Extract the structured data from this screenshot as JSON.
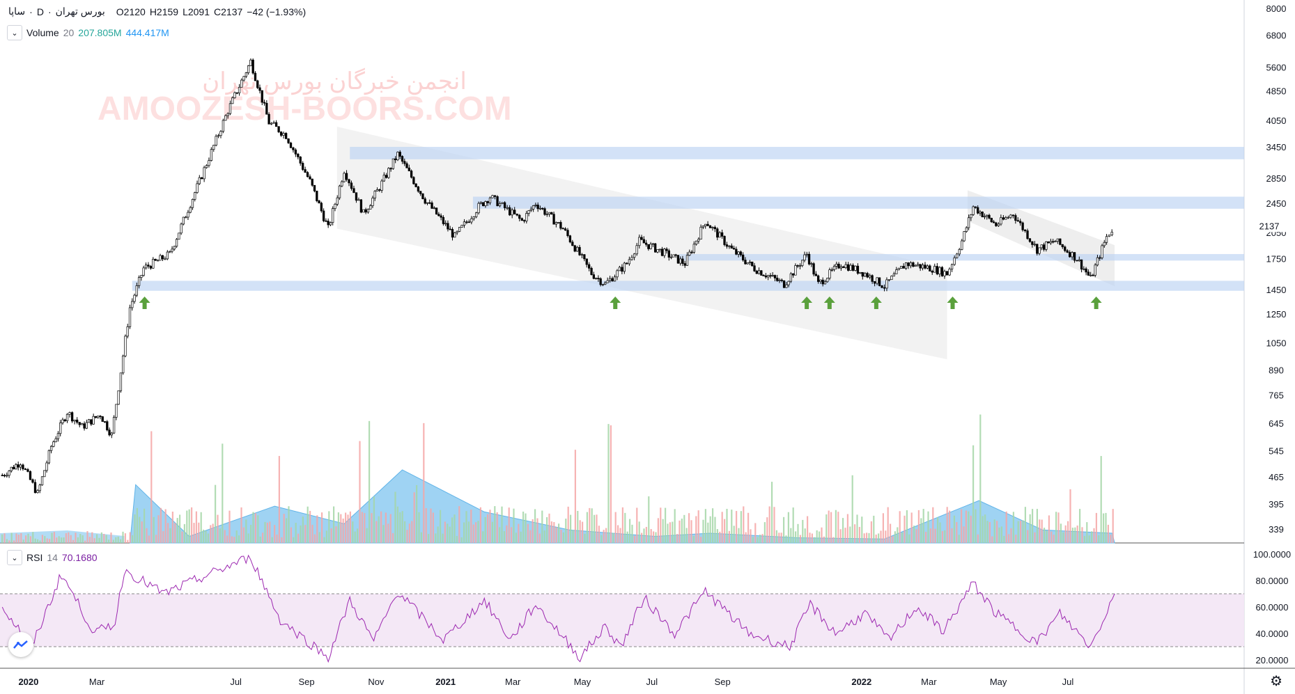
{
  "header": {
    "symbol": "ساپا",
    "interval": "D",
    "exchange": "بورس تهران",
    "open": "O2120",
    "high": "H2159",
    "low": "L2091",
    "close": "C2137",
    "change": "−42 (−1.93%)"
  },
  "volume_legend": {
    "name": "Volume",
    "length": "20",
    "value1": "207.805M",
    "value2": "444.417M"
  },
  "rsi_legend": {
    "name": "RSI",
    "length": "14",
    "value": "70.1680"
  },
  "watermark": {
    "line1": "انجمن خبرگان بورس تهران",
    "line2": "AMOOZESH-BOORS.COM"
  },
  "price_badge": "2137",
  "colors": {
    "up": "#26a69a",
    "down": "#ef5350",
    "zone": "#bcd3f2",
    "channel": "#d9d9d9",
    "rsi": "#9c27b0",
    "rsi_band": "#f3e5f5",
    "arrow": "#5aa03c"
  },
  "icons": {
    "logo": "tradingview-logo-icon",
    "settings": "gear-icon",
    "collapse": "chevron-down-icon"
  },
  "chart_data": [
    {
      "type": "line",
      "title": "",
      "y_scale": "log",
      "yaxis_ticks": [
        "8000",
        "6800",
        "5600",
        "4850",
        "4050",
        "3450",
        "2850",
        "2450",
        "2050",
        "1750",
        "1450",
        "1250",
        "1050",
        "890",
        "765",
        "645",
        "545",
        "465",
        "395",
        "339"
      ],
      "xaxis_ticks": [
        "2020",
        "Mar",
        "Jul",
        "Sep",
        "Nov",
        "2021",
        "Mar",
        "May",
        "Jul",
        "Sep",
        "2022",
        "Mar",
        "May",
        "Jul"
      ],
      "series": [
        {
          "values": [
            {
              "x": "2019-12-20",
              "y": 470
            },
            {
              "x": "2020-01-05",
              "y": 510
            },
            {
              "x": "2020-01-20",
              "y": 420
            },
            {
              "x": "2020-02-01",
              "y": 560
            },
            {
              "x": "2020-02-15",
              "y": 690
            },
            {
              "x": "2020-02-28",
              "y": 630
            },
            {
              "x": "2020-03-15",
              "y": 680
            },
            {
              "x": "2020-03-25",
              "y": 600
            },
            {
              "x": "2020-04-10",
              "y": 1300
            },
            {
              "x": "2020-04-22",
              "y": 1650
            },
            {
              "x": "2020-05-15",
              "y": 1800
            },
            {
              "x": "2020-06-10",
              "y": 2800
            },
            {
              "x": "2020-07-05",
              "y": 4300
            },
            {
              "x": "2020-07-25",
              "y": 5800
            },
            {
              "x": "2020-08-10",
              "y": 4000
            },
            {
              "x": "2020-08-25",
              "y": 3700
            },
            {
              "x": "2020-09-15",
              "y": 2800
            },
            {
              "x": "2020-10-01",
              "y": 2100
            },
            {
              "x": "2020-10-15",
              "y": 3000
            },
            {
              "x": "2020-11-01",
              "y": 2300
            },
            {
              "x": "2020-11-15",
              "y": 2700
            },
            {
              "x": "2020-12-01",
              "y": 3300
            },
            {
              "x": "2020-12-25",
              "y": 2500
            },
            {
              "x": "2021-01-20",
              "y": 2000
            },
            {
              "x": "2021-02-10",
              "y": 2400
            },
            {
              "x": "2021-02-20",
              "y": 2550
            },
            {
              "x": "2021-03-20",
              "y": 2200
            },
            {
              "x": "2021-04-01",
              "y": 2450
            },
            {
              "x": "2021-04-25",
              "y": 2100
            },
            {
              "x": "2021-05-20",
              "y": 1600
            },
            {
              "x": "2021-06-01",
              "y": 1500
            },
            {
              "x": "2021-06-20",
              "y": 1700
            },
            {
              "x": "2021-07-01",
              "y": 1950
            },
            {
              "x": "2021-07-25",
              "y": 1800
            },
            {
              "x": "2021-08-10",
              "y": 1700
            },
            {
              "x": "2021-08-28",
              "y": 2200
            },
            {
              "x": "2021-09-20",
              "y": 1850
            },
            {
              "x": "2021-10-10",
              "y": 1650
            },
            {
              "x": "2021-11-05",
              "y": 1500
            },
            {
              "x": "2021-11-25",
              "y": 1800
            },
            {
              "x": "2021-12-05",
              "y": 1500
            },
            {
              "x": "2021-12-25",
              "y": 1700
            },
            {
              "x": "2022-01-15",
              "y": 1600
            },
            {
              "x": "2022-02-01",
              "y": 1480
            },
            {
              "x": "2022-02-20",
              "y": 1700
            },
            {
              "x": "2022-03-15",
              "y": 1650
            },
            {
              "x": "2022-03-28",
              "y": 1600
            },
            {
              "x": "2022-04-10",
              "y": 1950
            },
            {
              "x": "2022-04-20",
              "y": 2400
            },
            {
              "x": "2022-05-10",
              "y": 2150
            },
            {
              "x": "2022-05-25",
              "y": 2300
            },
            {
              "x": "2022-06-15",
              "y": 1850
            },
            {
              "x": "2022-07-01",
              "y": 1950
            },
            {
              "x": "2022-07-20",
              "y": 1750
            },
            {
              "x": "2022-08-01",
              "y": 1550
            },
            {
              "x": "2022-08-15",
              "y": 2000
            },
            {
              "x": "2022-08-22",
              "y": 2137
            }
          ]
        }
      ]
    },
    {
      "type": "bar",
      "title": "",
      "series": [
        {
          "name": "Volume",
          "values": [
            {
              "x": "2020-04-15",
              "y": 430
            },
            {
              "x": "2020-06-01",
              "y": 340
            },
            {
              "x": "2020-08-15",
              "y": 390
            },
            {
              "x": "2020-10-15",
              "y": 360
            },
            {
              "x": "2020-12-05",
              "y": 460
            },
            {
              "x": "2021-02-15",
              "y": 380
            },
            {
              "x": "2021-05-01",
              "y": 350
            },
            {
              "x": "2021-07-15",
              "y": 340
            },
            {
              "x": "2021-09-01",
              "y": 345
            },
            {
              "x": "2021-11-15",
              "y": 338
            },
            {
              "x": "2022-02-01",
              "y": 336
            },
            {
              "x": "2022-04-25",
              "y": 400
            },
            {
              "x": "2022-06-20",
              "y": 350
            },
            {
              "x": "2022-08-20",
              "y": 345
            }
          ]
        }
      ]
    },
    {
      "type": "line",
      "title": "",
      "yaxis_ticks": [
        "100.0000",
        "80.0000",
        "60.0000",
        "40.0000",
        "20.0000"
      ],
      "bands": [
        30,
        70
      ],
      "series": [
        {
          "name": "RSI",
          "values": [
            {
              "x": "2019-12-20",
              "y": 60
            },
            {
              "x": "2020-01-15",
              "y": 30
            },
            {
              "x": "2020-02-10",
              "y": 85
            },
            {
              "x": "2020-03-10",
              "y": 40
            },
            {
              "x": "2020-03-28",
              "y": 48
            },
            {
              "x": "2020-04-05",
              "y": 88
            },
            {
              "x": "2020-05-10",
              "y": 70
            },
            {
              "x": "2020-07-25",
              "y": 98
            },
            {
              "x": "2020-08-20",
              "y": 50
            },
            {
              "x": "2020-10-01",
              "y": 22
            },
            {
              "x": "2020-10-20",
              "y": 65
            },
            {
              "x": "2020-11-10",
              "y": 34
            },
            {
              "x": "2020-12-01",
              "y": 72
            },
            {
              "x": "2021-01-10",
              "y": 35
            },
            {
              "x": "2021-02-15",
              "y": 65
            },
            {
              "x": "2021-03-10",
              "y": 35
            },
            {
              "x": "2021-04-01",
              "y": 62
            },
            {
              "x": "2021-05-10",
              "y": 22
            },
            {
              "x": "2021-06-01",
              "y": 45
            },
            {
              "x": "2021-06-15",
              "y": 30
            },
            {
              "x": "2021-07-05",
              "y": 67
            },
            {
              "x": "2021-08-01",
              "y": 40
            },
            {
              "x": "2021-08-28",
              "y": 72
            },
            {
              "x": "2021-10-05",
              "y": 40
            },
            {
              "x": "2021-11-10",
              "y": 30
            },
            {
              "x": "2021-11-28",
              "y": 62
            },
            {
              "x": "2021-12-20",
              "y": 40
            },
            {
              "x": "2022-01-15",
              "y": 55
            },
            {
              "x": "2022-02-05",
              "y": 35
            },
            {
              "x": "2022-03-01",
              "y": 60
            },
            {
              "x": "2022-03-25",
              "y": 42
            },
            {
              "x": "2022-04-20",
              "y": 78
            },
            {
              "x": "2022-05-10",
              "y": 55
            },
            {
              "x": "2022-06-15",
              "y": 33
            },
            {
              "x": "2022-07-05",
              "y": 55
            },
            {
              "x": "2022-08-01",
              "y": 30
            },
            {
              "x": "2022-08-22",
              "y": 70
            }
          ]
        }
      ]
    }
  ]
}
